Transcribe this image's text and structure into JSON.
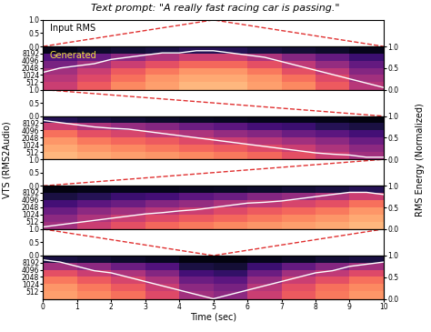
{
  "chart_data": {
    "type": "panels",
    "title": "Text prompt: \"A really fast racing car is passing.\"",
    "xlabel": "Time (sec)",
    "ylabel": "VTS (RMS2Audio)",
    "y2label": "RMS Energy (Normalized)",
    "input_label": "Input RMS",
    "generated_label": "Generated",
    "xlim": [
      0,
      10
    ],
    "xticks": [
      0,
      1,
      2,
      3,
      4,
      5,
      6,
      7,
      8,
      9,
      10
    ],
    "panels": [
      {
        "input": {
          "type": "line",
          "x": [
            0,
            5,
            10
          ],
          "values": [
            0,
            1,
            0
          ],
          "color": "#e03030",
          "line_style": "dashed",
          "ylim": [
            0,
            1
          ],
          "yticks": [
            {
              "value": 0,
              "label": "0.0"
            },
            {
              "value": 0.5,
              "label": "0.5"
            },
            {
              "value": 1,
              "label": "1.0"
            }
          ]
        },
        "spectrogram": {
          "type": "heatmap",
          "log": "y",
          "ylim": [
            250,
            16000
          ],
          "yticks": [
            512,
            1024,
            2048,
            4096,
            8192
          ],
          "color_range": [
            0,
            1
          ],
          "time_edges": [
            0,
            1,
            2,
            3,
            4,
            5,
            6,
            7,
            8,
            9,
            10
          ],
          "freq_edges": [
            250,
            512,
            1024,
            2048,
            4096,
            8192,
            16000
          ],
          "cells": [
            [
              0.55,
              0.65,
              0.75,
              0.8,
              0.85,
              0.85,
              0.8,
              0.75,
              0.65,
              0.5
            ],
            [
              0.5,
              0.6,
              0.7,
              0.78,
              0.82,
              0.82,
              0.78,
              0.7,
              0.6,
              0.45
            ],
            [
              0.45,
              0.55,
              0.65,
              0.72,
              0.78,
              0.78,
              0.72,
              0.62,
              0.52,
              0.38
            ],
            [
              0.35,
              0.45,
              0.55,
              0.62,
              0.68,
              0.68,
              0.62,
              0.52,
              0.42,
              0.3
            ],
            [
              0.25,
              0.3,
              0.4,
              0.48,
              0.55,
              0.55,
              0.48,
              0.38,
              0.3,
              0.2
            ],
            [
              0.05,
              0.08,
              0.1,
              0.12,
              0.15,
              0.15,
              0.12,
              0.1,
              0.08,
              0.05
            ]
          ]
        },
        "rms": {
          "type": "line",
          "color": "#ffffff",
          "x": [
            0,
            0.5,
            1,
            1.5,
            2,
            2.5,
            3,
            3.5,
            4,
            4.5,
            5,
            5.5,
            6,
            6.5,
            7,
            7.5,
            8,
            8.5,
            9,
            9.5,
            10
          ],
          "values": [
            0.4,
            0.5,
            0.55,
            0.6,
            0.7,
            0.75,
            0.8,
            0.85,
            0.85,
            0.9,
            0.9,
            0.85,
            0.8,
            0.75,
            0.65,
            0.55,
            0.45,
            0.35,
            0.25,
            0.15,
            0.05
          ],
          "y2lim": [
            0,
            1
          ],
          "y2ticks": [
            {
              "value": 0,
              "label": "0.0"
            },
            {
              "value": 0.5,
              "label": "0.5"
            },
            {
              "value": 1,
              "label": "1.0"
            }
          ]
        }
      },
      {
        "input": {
          "type": "line",
          "x": [
            0,
            10
          ],
          "values": [
            1,
            0
          ],
          "color": "#e03030",
          "line_style": "dashed",
          "ylim": [
            0,
            1
          ],
          "yticks": [
            {
              "value": 0,
              "label": "0.0"
            },
            {
              "value": 0.5,
              "label": "0.5"
            },
            {
              "value": 1,
              "label": "1.0"
            }
          ]
        },
        "spectrogram": {
          "type": "heatmap",
          "log": "y",
          "ylim": [
            250,
            16000
          ],
          "yticks": [
            512,
            1024,
            2048,
            4096,
            8192
          ],
          "color_range": [
            0,
            1
          ],
          "time_edges": [
            0,
            1,
            2,
            3,
            4,
            5,
            6,
            7,
            8,
            9,
            10
          ],
          "freq_edges": [
            250,
            512,
            1024,
            2048,
            4096,
            8192,
            16000
          ],
          "cells": [
            [
              0.85,
              0.82,
              0.8,
              0.78,
              0.75,
              0.72,
              0.68,
              0.62,
              0.55,
              0.45
            ],
            [
              0.82,
              0.78,
              0.75,
              0.72,
              0.68,
              0.65,
              0.6,
              0.55,
              0.48,
              0.4
            ],
            [
              0.78,
              0.72,
              0.68,
              0.65,
              0.6,
              0.55,
              0.5,
              0.45,
              0.4,
              0.32
            ],
            [
              0.7,
              0.62,
              0.58,
              0.52,
              0.48,
              0.42,
              0.38,
              0.32,
              0.28,
              0.22
            ],
            [
              0.55,
              0.48,
              0.42,
              0.38,
              0.32,
              0.28,
              0.22,
              0.2,
              0.15,
              0.12
            ],
            [
              0.15,
              0.12,
              0.1,
              0.08,
              0.07,
              0.06,
              0.05,
              0.05,
              0.04,
              0.03
            ]
          ]
        },
        "rms": {
          "type": "line",
          "color": "#ffffff",
          "x": [
            0,
            0.5,
            1,
            1.5,
            2,
            2.5,
            3,
            3.5,
            4,
            4.5,
            5,
            5.5,
            6,
            6.5,
            7,
            7.5,
            8,
            8.5,
            9,
            9.5,
            10
          ],
          "values": [
            0.9,
            0.85,
            0.8,
            0.75,
            0.72,
            0.7,
            0.65,
            0.6,
            0.55,
            0.5,
            0.45,
            0.4,
            0.35,
            0.3,
            0.25,
            0.2,
            0.15,
            0.12,
            0.1,
            0.05,
            0.05
          ],
          "y2lim": [
            0,
            1
          ],
          "y2ticks": [
            {
              "value": 0,
              "label": "0.0"
            },
            {
              "value": 0.5,
              "label": "0.5"
            },
            {
              "value": 1,
              "label": "1.0"
            }
          ]
        }
      },
      {
        "input": {
          "type": "line",
          "x": [
            0,
            10
          ],
          "values": [
            0,
            1
          ],
          "color": "#e03030",
          "line_style": "dashed",
          "ylim": [
            0,
            1
          ],
          "yticks": [
            {
              "value": 0,
              "label": "0.0"
            },
            {
              "value": 0.5,
              "label": "0.5"
            },
            {
              "value": 1,
              "label": "1.0"
            }
          ]
        },
        "spectrogram": {
          "type": "heatmap",
          "log": "y",
          "ylim": [
            250,
            16000
          ],
          "yticks": [
            512,
            1024,
            2048,
            4096,
            8192
          ],
          "color_range": [
            0,
            1
          ],
          "time_edges": [
            0,
            1,
            2,
            3,
            4,
            5,
            6,
            7,
            8,
            9,
            10
          ],
          "freq_edges": [
            250,
            512,
            1024,
            2048,
            4096,
            8192,
            16000
          ],
          "cells": [
            [
              0.45,
              0.55,
              0.62,
              0.68,
              0.72,
              0.75,
              0.78,
              0.8,
              0.82,
              0.85
            ],
            [
              0.4,
              0.48,
              0.55,
              0.6,
              0.65,
              0.68,
              0.72,
              0.75,
              0.78,
              0.82
            ],
            [
              0.32,
              0.4,
              0.45,
              0.5,
              0.55,
              0.6,
              0.65,
              0.68,
              0.72,
              0.78
            ],
            [
              0.22,
              0.28,
              0.32,
              0.38,
              0.42,
              0.48,
              0.52,
              0.58,
              0.62,
              0.7
            ],
            [
              0.12,
              0.15,
              0.2,
              0.22,
              0.28,
              0.32,
              0.38,
              0.42,
              0.48,
              0.55
            ],
            [
              0.03,
              0.04,
              0.05,
              0.05,
              0.06,
              0.07,
              0.08,
              0.1,
              0.12,
              0.15
            ]
          ]
        },
        "rms": {
          "type": "line",
          "color": "#ffffff",
          "x": [
            0,
            0.5,
            1,
            1.5,
            2,
            2.5,
            3,
            3.5,
            4,
            4.5,
            5,
            5.5,
            6,
            6.5,
            7,
            7.5,
            8,
            8.5,
            9,
            9.5,
            10
          ],
          "values": [
            0.05,
            0.1,
            0.15,
            0.2,
            0.25,
            0.3,
            0.35,
            0.38,
            0.42,
            0.45,
            0.5,
            0.55,
            0.6,
            0.62,
            0.65,
            0.7,
            0.75,
            0.8,
            0.85,
            0.85,
            0.8
          ],
          "y2lim": [
            0,
            1
          ],
          "y2ticks": [
            {
              "value": 0,
              "label": "0.0"
            },
            {
              "value": 0.5,
              "label": "0.5"
            },
            {
              "value": 1,
              "label": "1.0"
            }
          ]
        }
      },
      {
        "input": {
          "type": "line",
          "x": [
            0,
            5,
            10
          ],
          "values": [
            1,
            0,
            1
          ],
          "color": "#e03030",
          "line_style": "dashed",
          "ylim": [
            0,
            1
          ],
          "yticks": [
            {
              "value": 0,
              "label": "0.0"
            },
            {
              "value": 0.5,
              "label": "0.5"
            },
            {
              "value": 1,
              "label": "1.0"
            }
          ]
        },
        "spectrogram": {
          "type": "heatmap",
          "log": "y",
          "ylim": [
            250,
            16000
          ],
          "yticks": [
            512,
            1024,
            2048,
            4096,
            8192
          ],
          "color_range": [
            0,
            1
          ],
          "time_edges": [
            0,
            1,
            2,
            3,
            4,
            5,
            6,
            7,
            8,
            9,
            10
          ],
          "freq_edges": [
            250,
            512,
            1024,
            2048,
            4096,
            8192,
            16000
          ],
          "cells": [
            [
              0.8,
              0.75,
              0.7,
              0.6,
              0.45,
              0.4,
              0.55,
              0.65,
              0.72,
              0.78
            ],
            [
              0.78,
              0.72,
              0.65,
              0.55,
              0.4,
              0.35,
              0.5,
              0.62,
              0.7,
              0.75
            ],
            [
              0.72,
              0.65,
              0.58,
              0.48,
              0.32,
              0.28,
              0.42,
              0.55,
              0.62,
              0.7
            ],
            [
              0.62,
              0.55,
              0.48,
              0.38,
              0.22,
              0.18,
              0.32,
              0.45,
              0.52,
              0.6
            ],
            [
              0.45,
              0.4,
              0.32,
              0.25,
              0.12,
              0.1,
              0.2,
              0.3,
              0.38,
              0.45
            ],
            [
              0.12,
              0.1,
              0.08,
              0.06,
              0.03,
              0.03,
              0.05,
              0.07,
              0.1,
              0.12
            ]
          ]
        },
        "rms": {
          "type": "line",
          "color": "#ffffff",
          "x": [
            0,
            0.5,
            1,
            1.5,
            2,
            2.5,
            3,
            3.5,
            4,
            4.5,
            5,
            5.5,
            6,
            6.5,
            7,
            7.5,
            8,
            8.5,
            9,
            9.5,
            10
          ],
          "values": [
            0.9,
            0.85,
            0.75,
            0.65,
            0.6,
            0.5,
            0.4,
            0.3,
            0.2,
            0.1,
            0.0,
            0.1,
            0.2,
            0.3,
            0.4,
            0.5,
            0.6,
            0.65,
            0.75,
            0.8,
            0.85
          ],
          "y2lim": [
            0,
            1
          ],
          "y2ticks": [
            {
              "value": 0,
              "label": "0.0"
            },
            {
              "value": 0.5,
              "label": "0.5"
            },
            {
              "value": 1,
              "label": "1.0"
            }
          ]
        }
      }
    ]
  }
}
